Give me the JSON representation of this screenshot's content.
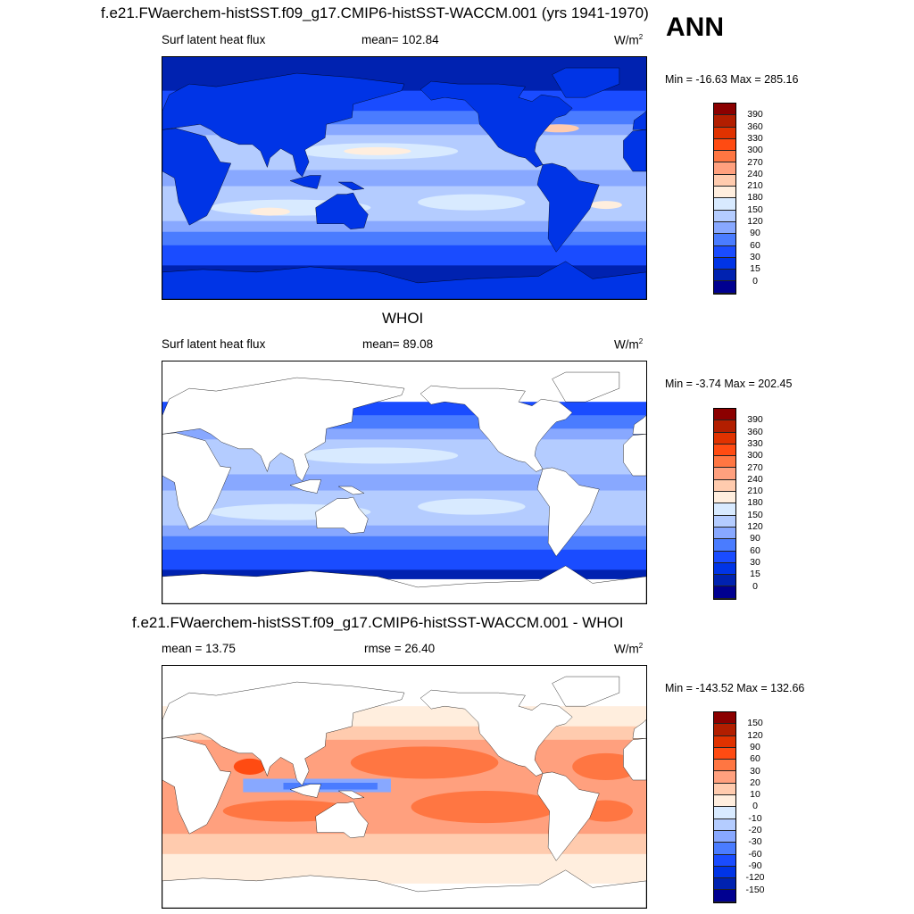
{
  "header": {
    "title": "f.e21.FWaerchem-histSST.f09_g17.CMIP6-histSST-WACCM.001 (yrs 1941-1970)",
    "season": "ANN"
  },
  "panels": [
    {
      "title": "",
      "variable": "Surf latent heat flux",
      "stat": "mean= 102.84",
      "units": "W/m",
      "units_sup": "2",
      "minmax": "Min = -16.63 Max = 285.16",
      "kind": "model"
    },
    {
      "title": "WHOI",
      "variable": "Surf latent heat flux",
      "stat": "mean=  89.08",
      "units": "W/m",
      "units_sup": "2",
      "minmax": "Min =  -3.74 Max = 202.45",
      "kind": "obs"
    },
    {
      "title": "f.e21.FWaerchem-histSST.f09_g17.CMIP6-histSST-WACCM.001 - WHOI",
      "variable": "mean =  13.75",
      "stat": "rmse =  26.40",
      "units": "W/m",
      "units_sup": "2",
      "minmax": "Min = -143.52 Max = 132.66",
      "kind": "diff"
    }
  ],
  "colorbars": {
    "absolute": [
      "390",
      "360",
      "330",
      "300",
      "270",
      "240",
      "210",
      "180",
      "150",
      "120",
      "90",
      "60",
      "30",
      "15",
      "0"
    ],
    "difference": [
      "150",
      "120",
      "90",
      "60",
      "30",
      "20",
      "10",
      "0",
      "-10",
      "-20",
      "-30",
      "-60",
      "-90",
      "-120",
      "-150"
    ]
  },
  "palette": [
    "#8b0000",
    "#b21e00",
    "#e03200",
    "#ff4b12",
    "#ff7642",
    "#ffa07e",
    "#ffcbae",
    "#ffeede",
    "#d8eaff",
    "#b4ccff",
    "#88a8ff",
    "#4a7cff",
    "#1a4cff",
    "#0034e6",
    "#0022b0",
    "#000090"
  ]
}
